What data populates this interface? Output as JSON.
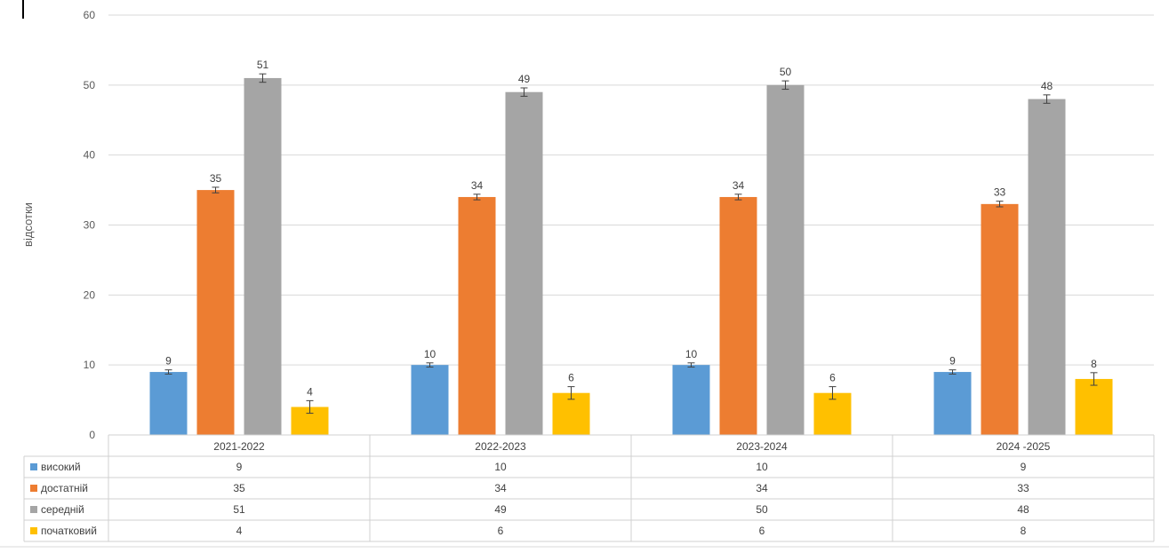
{
  "chart_data": {
    "type": "bar",
    "title": "",
    "xlabel": "",
    "ylabel": "відсотки",
    "ylim": [
      0,
      60
    ],
    "yticks": [
      0,
      10,
      20,
      30,
      40,
      50,
      60
    ],
    "grid": true,
    "legend": "data-table-left",
    "categories": [
      "2021-2022",
      "2022-2023",
      "2023-2024",
      "2024 -2025"
    ],
    "series": [
      {
        "name": "високий",
        "color": "#5b9bd5",
        "values": [
          9,
          10,
          10,
          9
        ],
        "error": [
          0.3,
          0.3,
          0.3,
          0.3
        ]
      },
      {
        "name": "достатній",
        "color": "#ed7d31",
        "values": [
          35,
          34,
          34,
          33
        ],
        "error": [
          0.4,
          0.4,
          0.4,
          0.4
        ]
      },
      {
        "name": "середній",
        "color": "#a5a5a5",
        "values": [
          51,
          49,
          50,
          48
        ],
        "error": [
          0.6,
          0.6,
          0.6,
          0.6
        ]
      },
      {
        "name": "початковий",
        "color": "#ffc000",
        "values": [
          4,
          6,
          6,
          8
        ],
        "error": [
          0.9,
          0.9,
          0.9,
          0.9
        ]
      }
    ]
  }
}
